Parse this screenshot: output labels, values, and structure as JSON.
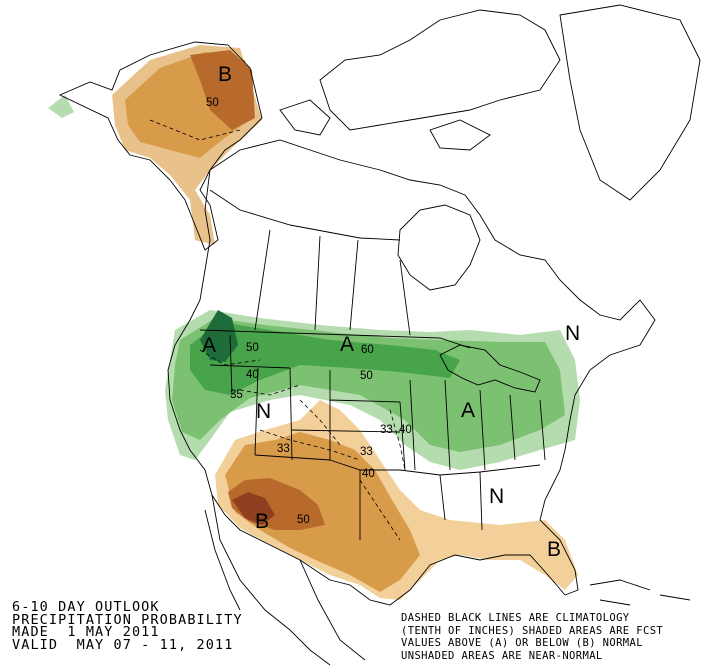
{
  "title_lines": [
    "6-10 DAY OUTLOOK",
    "PRECIPITATION PROBABILITY",
    "MADE  1 MAY 2011",
    "VALID  MAY 07 - 11, 2011"
  ],
  "note_lines": [
    "DASHED BLACK LINES ARE CLIMATOLOGY",
    "(TENTH OF INCHES) SHADED AREAS ARE FCST",
    "VALUES ABOVE (A) OR BELOW (B) NORMAL",
    "UNSHADED AREAS ARE NEAR-NORMAL"
  ],
  "category_labels": {
    "below_alaska": "B",
    "above_pacific_nw": "A",
    "above_northern_plains": "A",
    "above_great_lakes": "A",
    "near_normal_northeast": "N",
    "near_normal_rockies": "N",
    "near_normal_southeast": "N",
    "below_southwest": "B",
    "below_florida": "B"
  },
  "contour_labels": {
    "alaska_50": "50",
    "pnw_50": "50",
    "pnw_40": "40",
    "pnw_35": "35",
    "plains_60": "60",
    "plains_50": "50",
    "sw_33a": "33",
    "sw_33b": "33",
    "sw_40": "40",
    "sw_50": "50",
    "east_33": "33",
    "east_40": "40"
  },
  "colors": {
    "above_33": "#b5dcae",
    "above_40": "#7cc172",
    "above_50": "#47a44a",
    "above_60": "#1f6b3a",
    "below_33": "#f3d09a",
    "below_40": "#d79b4a",
    "below_50": "#c27a32",
    "below_60": "#9c4a22",
    "below_alaska_light": "#e8c28a"
  }
}
